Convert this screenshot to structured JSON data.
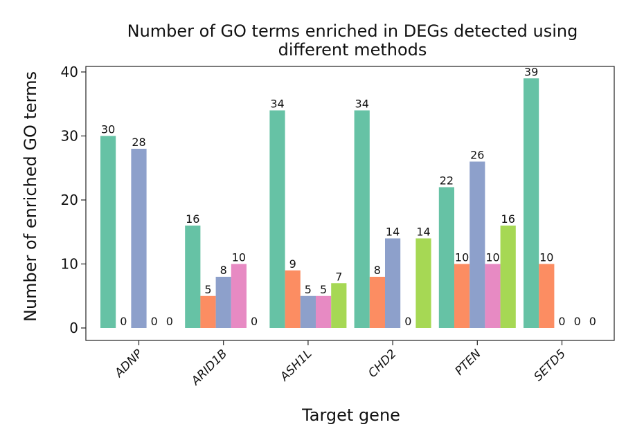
{
  "chart_data": {
    "type": "bar",
    "title": "Number of GO terms enriched in DEGs detected using different methods",
    "title_lines": [
      "Number of GO terms enriched in DEGs detected using",
      "different methods"
    ],
    "xlabel": "Target gene",
    "ylabel": "Number of enriched GO terms",
    "ylim": [
      0,
      40
    ],
    "yticks": [
      0,
      10,
      20,
      30,
      40
    ],
    "grid": false,
    "legend": "none",
    "categories": [
      "ADNP",
      "ARID1B",
      "ASH1L",
      "CHD2",
      "PTEN",
      "SETD5"
    ],
    "series": [
      {
        "color": "#66c2a5",
        "values": [
          30,
          16,
          34,
          34,
          22,
          39
        ]
      },
      {
        "color": "#fc8d62",
        "values": [
          0,
          5,
          9,
          8,
          10,
          10
        ]
      },
      {
        "color": "#8da0cb",
        "values": [
          28,
          8,
          5,
          14,
          26,
          0
        ]
      },
      {
        "color": "#e78ac3",
        "values": [
          0,
          10,
          5,
          0,
          10,
          0
        ]
      },
      {
        "color": "#a6d854",
        "values": [
          0,
          0,
          7,
          14,
          16,
          0
        ]
      }
    ]
  }
}
